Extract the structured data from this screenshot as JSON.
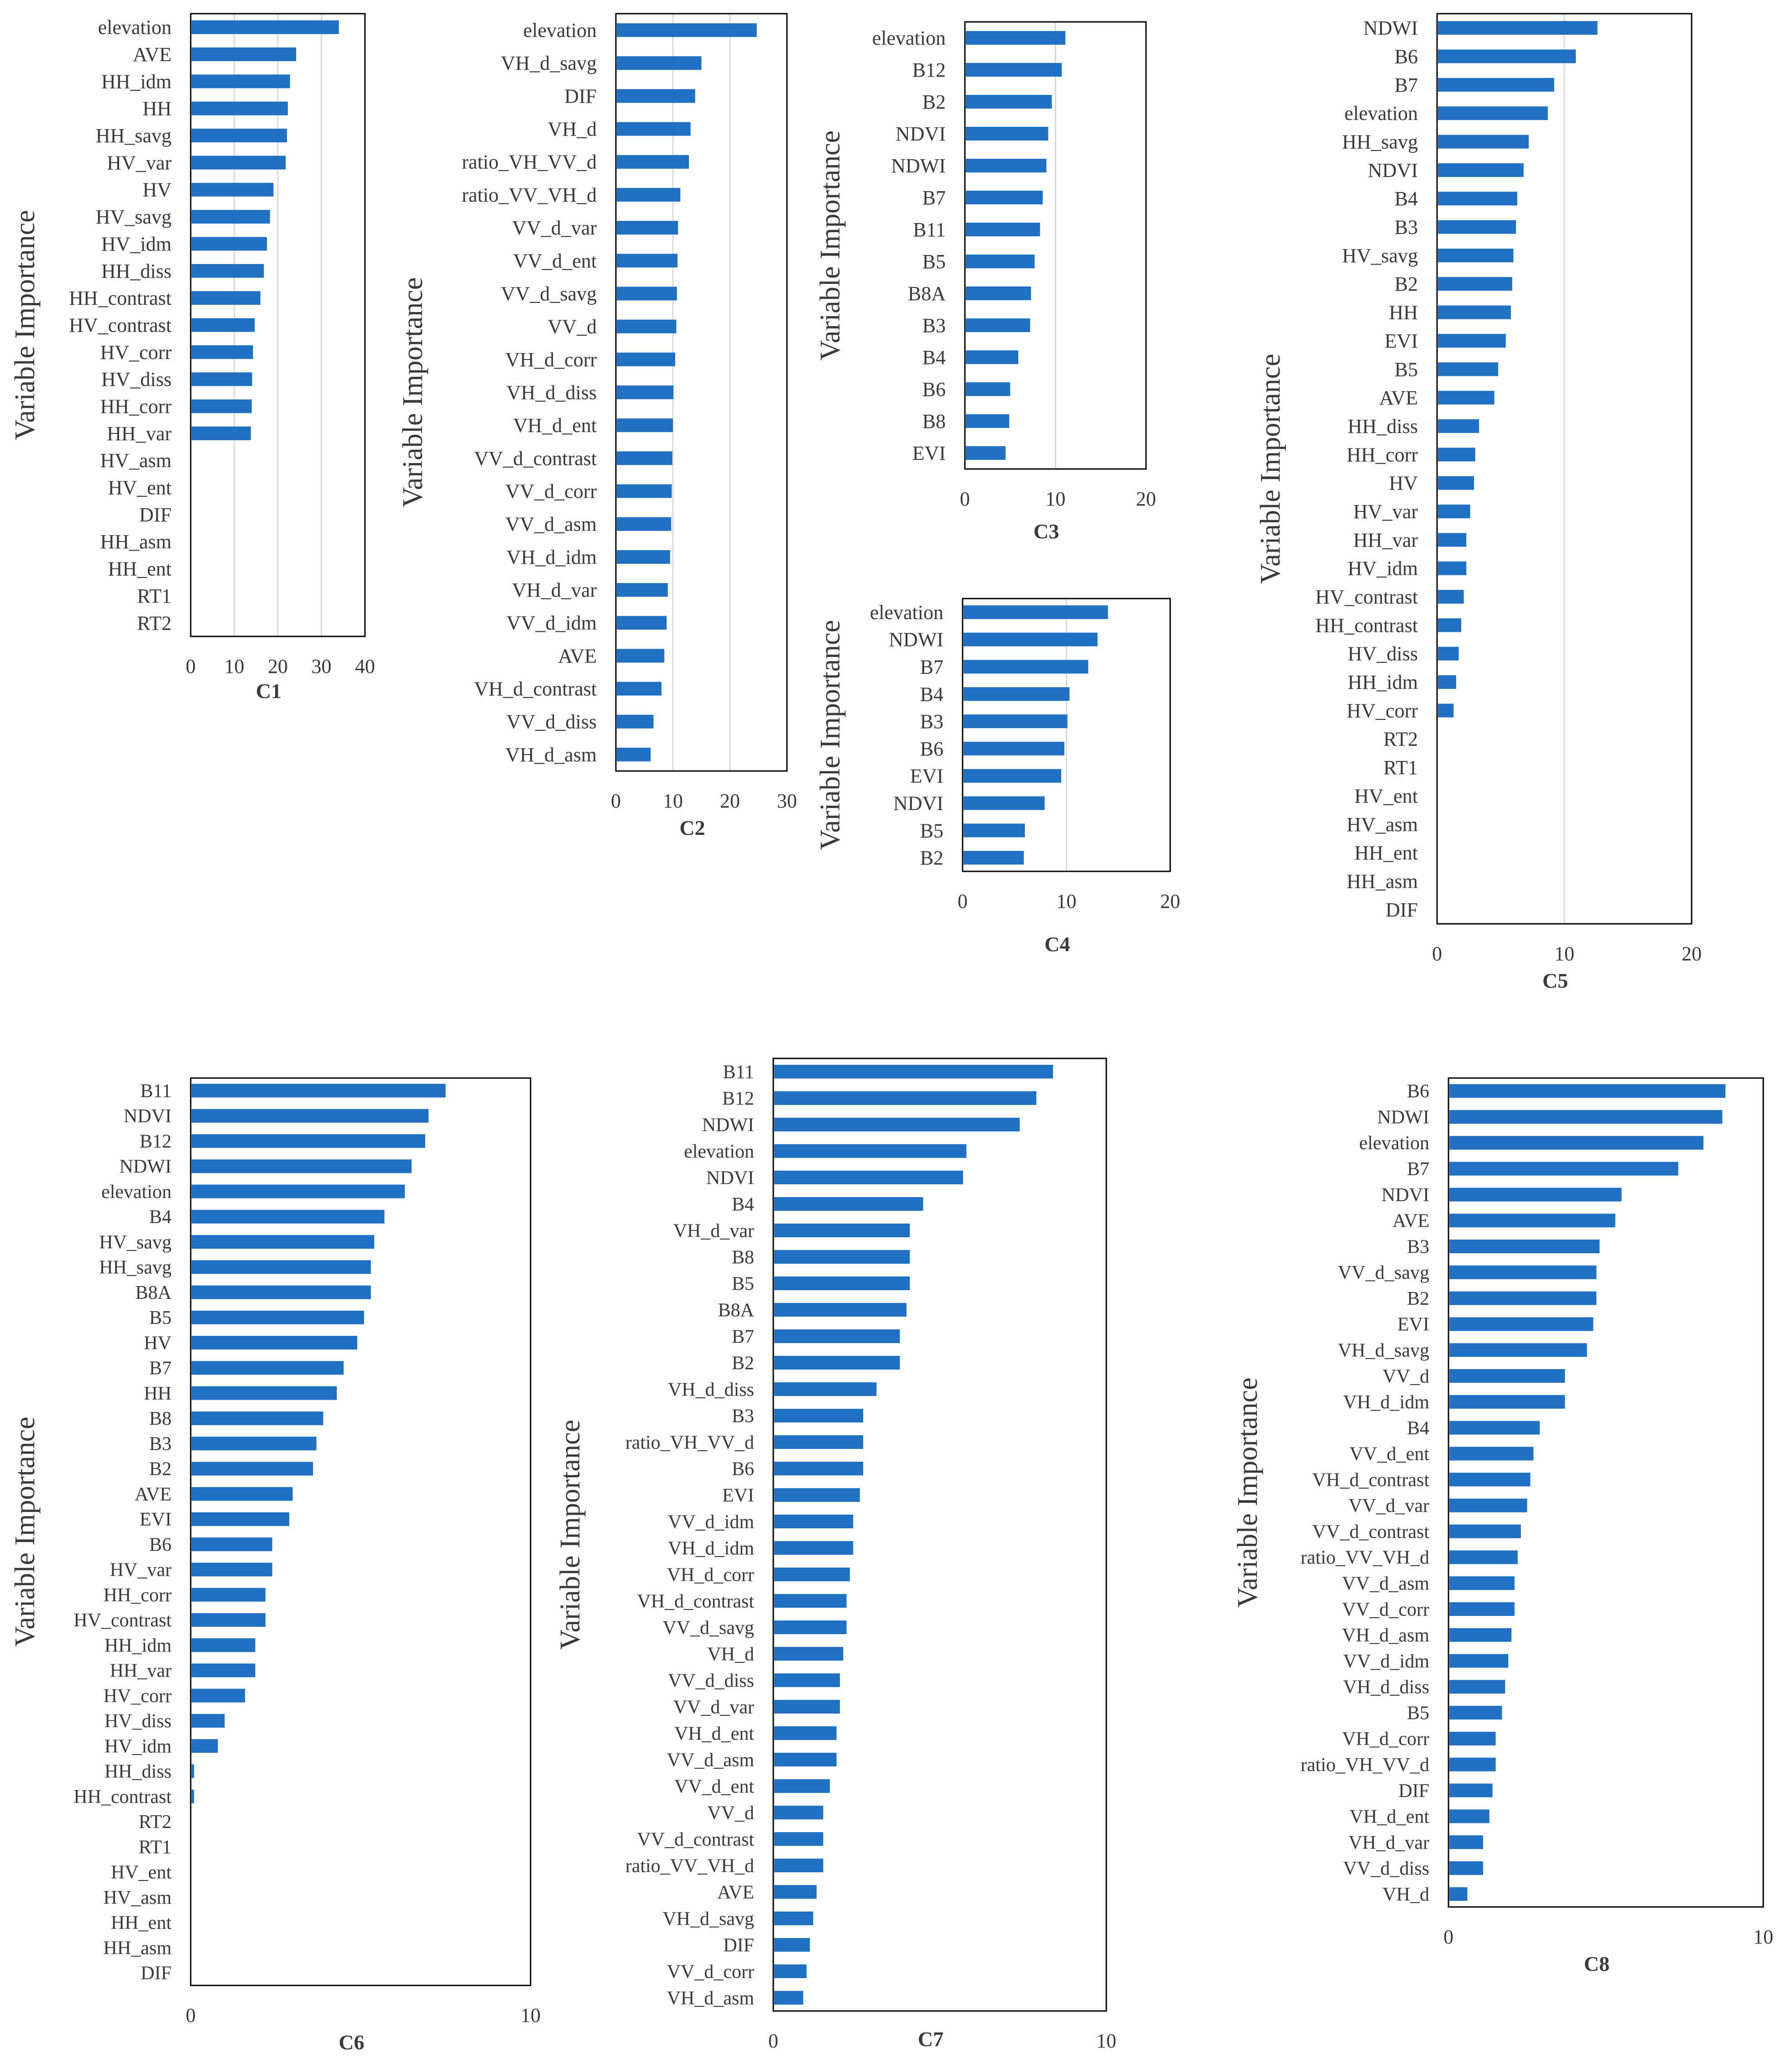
{
  "colors": {
    "bar": "#2270c4",
    "grid": "#d9d9d9",
    "frame": "#000000",
    "text": "#3a3a3a"
  },
  "chart_data": [
    {
      "type": "bar",
      "orientation": "horizontal",
      "title": "C1",
      "ylabel": "Variable Importance",
      "xlim": [
        0,
        40
      ],
      "xticks": [
        0,
        10,
        20,
        30,
        40
      ],
      "grid": true,
      "categories": [
        "elevation",
        "AVE",
        "HH_idm",
        "HH",
        "HH_savg",
        "HV_var",
        "HV",
        "HV_savg",
        "HV_idm",
        "HH_diss",
        "HH_contrast",
        "HV_contrast",
        "HV_corr",
        "HV_diss",
        "HH_corr",
        "HH_var",
        "HV_asm",
        "HV_ent",
        "DIF",
        "HH_asm",
        "HH_ent",
        "RT1",
        "RT2"
      ],
      "values": [
        34,
        24.2,
        22.8,
        22.3,
        22.1,
        21.8,
        19,
        18.2,
        17.5,
        16.8,
        16,
        14.7,
        14.3,
        14.1,
        14,
        13.8,
        0,
        0,
        0,
        0,
        0,
        0,
        0
      ]
    },
    {
      "type": "bar",
      "orientation": "horizontal",
      "title": "C2",
      "ylabel": "Variable Importance",
      "xlim": [
        0,
        30
      ],
      "xticks": [
        0,
        10,
        20,
        30
      ],
      "grid": true,
      "categories": [
        "elevation",
        "VH_d_savg",
        "DIF",
        "VH_d",
        "ratio_VH_VV_d",
        "ratio_VV_VH_d",
        "VV_d_var",
        "VV_d_ent",
        "VV_d_savg",
        "VV_d",
        "VH_d_corr",
        "VH_d_diss",
        "VH_d_ent",
        "VV_d_contrast",
        "VV_d_corr",
        "VV_d_asm",
        "VH_d_idm",
        "VH_d_var",
        "VV_d_idm",
        "AVE",
        "VH_d_contrast",
        "VV_d_diss",
        "VH_d_asm"
      ],
      "values": [
        24.7,
        15,
        13.9,
        13.1,
        12.8,
        11.3,
        10.9,
        10.8,
        10.7,
        10.6,
        10.4,
        10.1,
        10,
        9.9,
        9.8,
        9.7,
        9.5,
        9.1,
        8.9,
        8.5,
        8,
        6.6,
        6.1
      ]
    },
    {
      "type": "bar",
      "orientation": "horizontal",
      "title": "C3",
      "ylabel": "Variable Importance",
      "xlim": [
        0,
        20
      ],
      "xticks": [
        0,
        10,
        20
      ],
      "grid": true,
      "categories": [
        "elevation",
        "B12",
        "B2",
        "NDVI",
        "NDWI",
        "B7",
        "B11",
        "B5",
        "B8A",
        "B3",
        "B4",
        "B6",
        "B8",
        "EVI"
      ],
      "values": [
        11.1,
        10.7,
        9.6,
        9.2,
        9,
        8.6,
        8.3,
        7.7,
        7.3,
        7.2,
        5.9,
        5,
        4.9,
        4.5
      ]
    },
    {
      "type": "bar",
      "orientation": "horizontal",
      "title": "C4",
      "ylabel": "Variable Importance",
      "xlim": [
        0,
        20
      ],
      "xticks": [
        0,
        10,
        20
      ],
      "grid": true,
      "categories": [
        "elevation",
        "NDWI",
        "B7",
        "B4",
        "B3",
        "B6",
        "EVI",
        "NDVI",
        "B5",
        "B2"
      ],
      "values": [
        14,
        13,
        12.1,
        10.3,
        10.1,
        9.8,
        9.5,
        7.9,
        6,
        5.9
      ]
    },
    {
      "type": "bar",
      "orientation": "horizontal",
      "title": "C5",
      "ylabel": "Variable Importance",
      "xlim": [
        0,
        20
      ],
      "xticks": [
        0,
        10,
        20
      ],
      "grid": true,
      "categories": [
        "NDWI",
        "B6",
        "B7",
        "elevation",
        "HH_savg",
        "NDVI",
        "B4",
        "B3",
        "HV_savg",
        "B2",
        "HH",
        "EVI",
        "B5",
        "AVE",
        "HH_diss",
        "HH_corr",
        "HV",
        "HV_var",
        "HH_var",
        "HV_idm",
        "HV_contrast",
        "HH_contrast",
        "HV_diss",
        "HH_idm",
        "HV_corr",
        "RT2",
        "RT1",
        "HV_ent",
        "HV_asm",
        "HH_ent",
        "HH_asm",
        "DIF"
      ],
      "values": [
        12.6,
        10.9,
        9.2,
        8.7,
        7.2,
        6.8,
        6.3,
        6.2,
        6,
        5.9,
        5.8,
        5.4,
        4.8,
        4.5,
        3.3,
        3,
        2.9,
        2.6,
        2.3,
        2.3,
        2.1,
        1.9,
        1.7,
        1.5,
        1.3,
        0,
        0,
        0,
        0,
        0,
        0,
        0
      ]
    },
    {
      "type": "bar",
      "orientation": "horizontal",
      "title": "C6",
      "ylabel": "Variable Importance",
      "xlim": [
        0,
        10
      ],
      "xticks": [
        0,
        10
      ],
      "grid": false,
      "categories": [
        "B11",
        "NDVI",
        "B12",
        "NDWI",
        "elevation",
        "B4",
        "HV_savg",
        "HH_savg",
        "B8A",
        "B5",
        "HV",
        "B7",
        "HH",
        "B8",
        "B3",
        "B2",
        "AVE",
        "EVI",
        "B6",
        "HV_var",
        "HH_corr",
        "HV_contrast",
        "HH_idm",
        "HH_var",
        "HV_corr",
        "HV_diss",
        "HV_idm",
        "HH_diss",
        "HH_contrast",
        "RT2",
        "RT1",
        "HV_ent",
        "HV_asm",
        "HH_ent",
        "HH_asm",
        "DIF"
      ],
      "values": [
        7.5,
        7,
        6.9,
        6.5,
        6.3,
        5.7,
        5.4,
        5.3,
        5.3,
        5.1,
        4.9,
        4.5,
        4.3,
        3.9,
        3.7,
        3.6,
        3,
        2.9,
        2.4,
        2.4,
        2.2,
        2.2,
        1.9,
        1.9,
        1.6,
        1,
        0.8,
        0.1,
        0.1,
        0,
        0,
        0,
        0,
        0,
        0,
        0
      ]
    },
    {
      "type": "bar",
      "orientation": "horizontal",
      "title": "C7",
      "ylabel": "Variable Importance",
      "xlim": [
        0,
        10
      ],
      "xticks": [
        0,
        10
      ],
      "grid": false,
      "categories": [
        "B11",
        "B12",
        "NDWI",
        "elevation",
        "NDVI",
        "B4",
        "VH_d_var",
        "B8",
        "B5",
        "B8A",
        "B7",
        "B2",
        "VH_d_diss",
        "B3",
        "ratio_VH_VV_d",
        "B6",
        "EVI",
        "VV_d_idm",
        "VH_d_idm",
        "VH_d_corr",
        "VH_d_contrast",
        "VV_d_savg",
        "VH_d",
        "VV_d_diss",
        "VV_d_var",
        "VH_d_ent",
        "VV_d_asm",
        "VV_d_ent",
        "VV_d",
        "VV_d_contrast",
        "ratio_VV_VH_d",
        "AVE",
        "VH_d_savg",
        "DIF",
        "VV_d_corr",
        "VH_d_asm"
      ],
      "values": [
        8.4,
        7.9,
        7.4,
        5.8,
        5.7,
        4.5,
        4.1,
        4.1,
        4.1,
        4,
        3.8,
        3.8,
        3.1,
        2.7,
        2.7,
        2.7,
        2.6,
        2.4,
        2.4,
        2.3,
        2.2,
        2.2,
        2.1,
        2,
        2,
        1.9,
        1.9,
        1.7,
        1.5,
        1.5,
        1.5,
        1.3,
        1.2,
        1.1,
        1,
        0.9
      ]
    },
    {
      "type": "bar",
      "orientation": "horizontal",
      "title": "C8",
      "ylabel": "Variable Importance",
      "xlim": [
        0,
        10
      ],
      "xticks": [
        0,
        10
      ],
      "grid": false,
      "categories": [
        "B6",
        "NDWI",
        "elevation",
        "B7",
        "NDVI",
        "AVE",
        "B3",
        "VV_d_savg",
        "B2",
        "EVI",
        "VH_d_savg",
        "VV_d",
        "VH_d_idm",
        "B4",
        "VV_d_ent",
        "VH_d_contrast",
        "VV_d_var",
        "VV_d_contrast",
        "ratio_VV_VH_d",
        "VV_d_asm",
        "VV_d_corr",
        "VH_d_asm",
        "VV_d_idm",
        "VH_d_diss",
        "B5",
        "VH_d_corr",
        "ratio_VH_VV_d",
        "DIF",
        "VH_d_ent",
        "VH_d_var",
        "VV_d_diss",
        "VH_d"
      ],
      "values": [
        8.8,
        8.7,
        8.1,
        7.3,
        5.5,
        5.3,
        4.8,
        4.7,
        4.7,
        4.6,
        4.4,
        3.7,
        3.7,
        2.9,
        2.7,
        2.6,
        2.5,
        2.3,
        2.2,
        2.1,
        2.1,
        2,
        1.9,
        1.8,
        1.7,
        1.5,
        1.5,
        1.4,
        1.3,
        1.1,
        1.1,
        0.6
      ]
    }
  ]
}
